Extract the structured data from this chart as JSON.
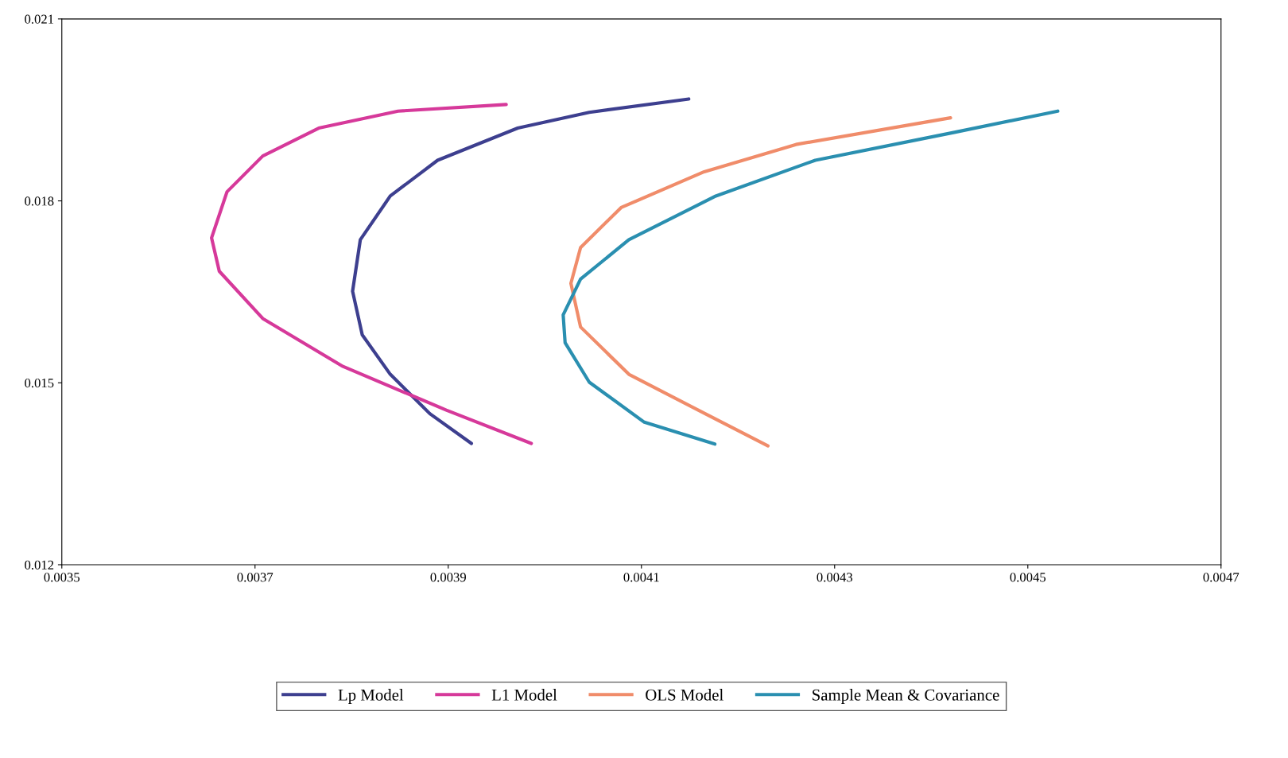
{
  "chart_data": {
    "type": "line",
    "xlim": [
      0.0035,
      0.0047
    ],
    "xticks": [
      0.0035,
      0.0037,
      0.0039,
      0.0041,
      0.0043,
      0.0045,
      0.0047
    ],
    "ylim": [
      0.012,
      0.021
    ],
    "yticks": [
      0.012,
      0.015,
      0.018,
      0.021
    ],
    "grid": false,
    "legend": "bottom",
    "marker": "none",
    "line_style": "solid",
    "series": [
      {
        "name": "Lp Model",
        "color": "#3d3f8f",
        "x": [
          0.003924,
          0.003881,
          0.00384,
          0.003811,
          0.003801,
          0.003809,
          0.00384,
          0.003889,
          0.003972,
          0.004046,
          0.004149
        ],
        "values": [
          0.014,
          0.01449,
          0.01514,
          0.01579,
          0.01651,
          0.01736,
          0.01808,
          0.01867,
          0.0192,
          0.01946,
          0.01968
        ]
      },
      {
        "name": "L1 Model",
        "color": "#d6399a",
        "x": [
          0.003986,
          0.003898,
          0.003791,
          0.003708,
          0.003663,
          0.003655,
          0.003671,
          0.003708,
          0.003766,
          0.003848,
          0.00396
        ],
        "values": [
          0.014,
          0.01455,
          0.01527,
          0.01606,
          0.01684,
          0.01739,
          0.01815,
          0.01874,
          0.0192,
          0.01948,
          0.01959
        ]
      },
      {
        "name": "OLS Model",
        "color": "#f08c6a",
        "x": [
          0.004231,
          0.004166,
          0.004087,
          0.004037,
          0.004027,
          0.004037,
          0.004079,
          0.004165,
          0.00426,
          0.00442
        ],
        "values": [
          0.01396,
          0.01449,
          0.01514,
          0.01592,
          0.01664,
          0.01723,
          0.01789,
          0.01848,
          0.01893,
          0.01937
        ]
      },
      {
        "name": "Sample Mean & Covariance",
        "color": "#2a8fb0",
        "x": [
          0.004176,
          0.004103,
          0.004046,
          0.004021,
          0.004019,
          0.004037,
          0.004087,
          0.004177,
          0.00428,
          0.004424,
          0.004531
        ],
        "values": [
          0.01399,
          0.01435,
          0.01501,
          0.01566,
          0.01612,
          0.01671,
          0.01736,
          0.01808,
          0.01867,
          0.01913,
          0.01948
        ]
      }
    ]
  }
}
